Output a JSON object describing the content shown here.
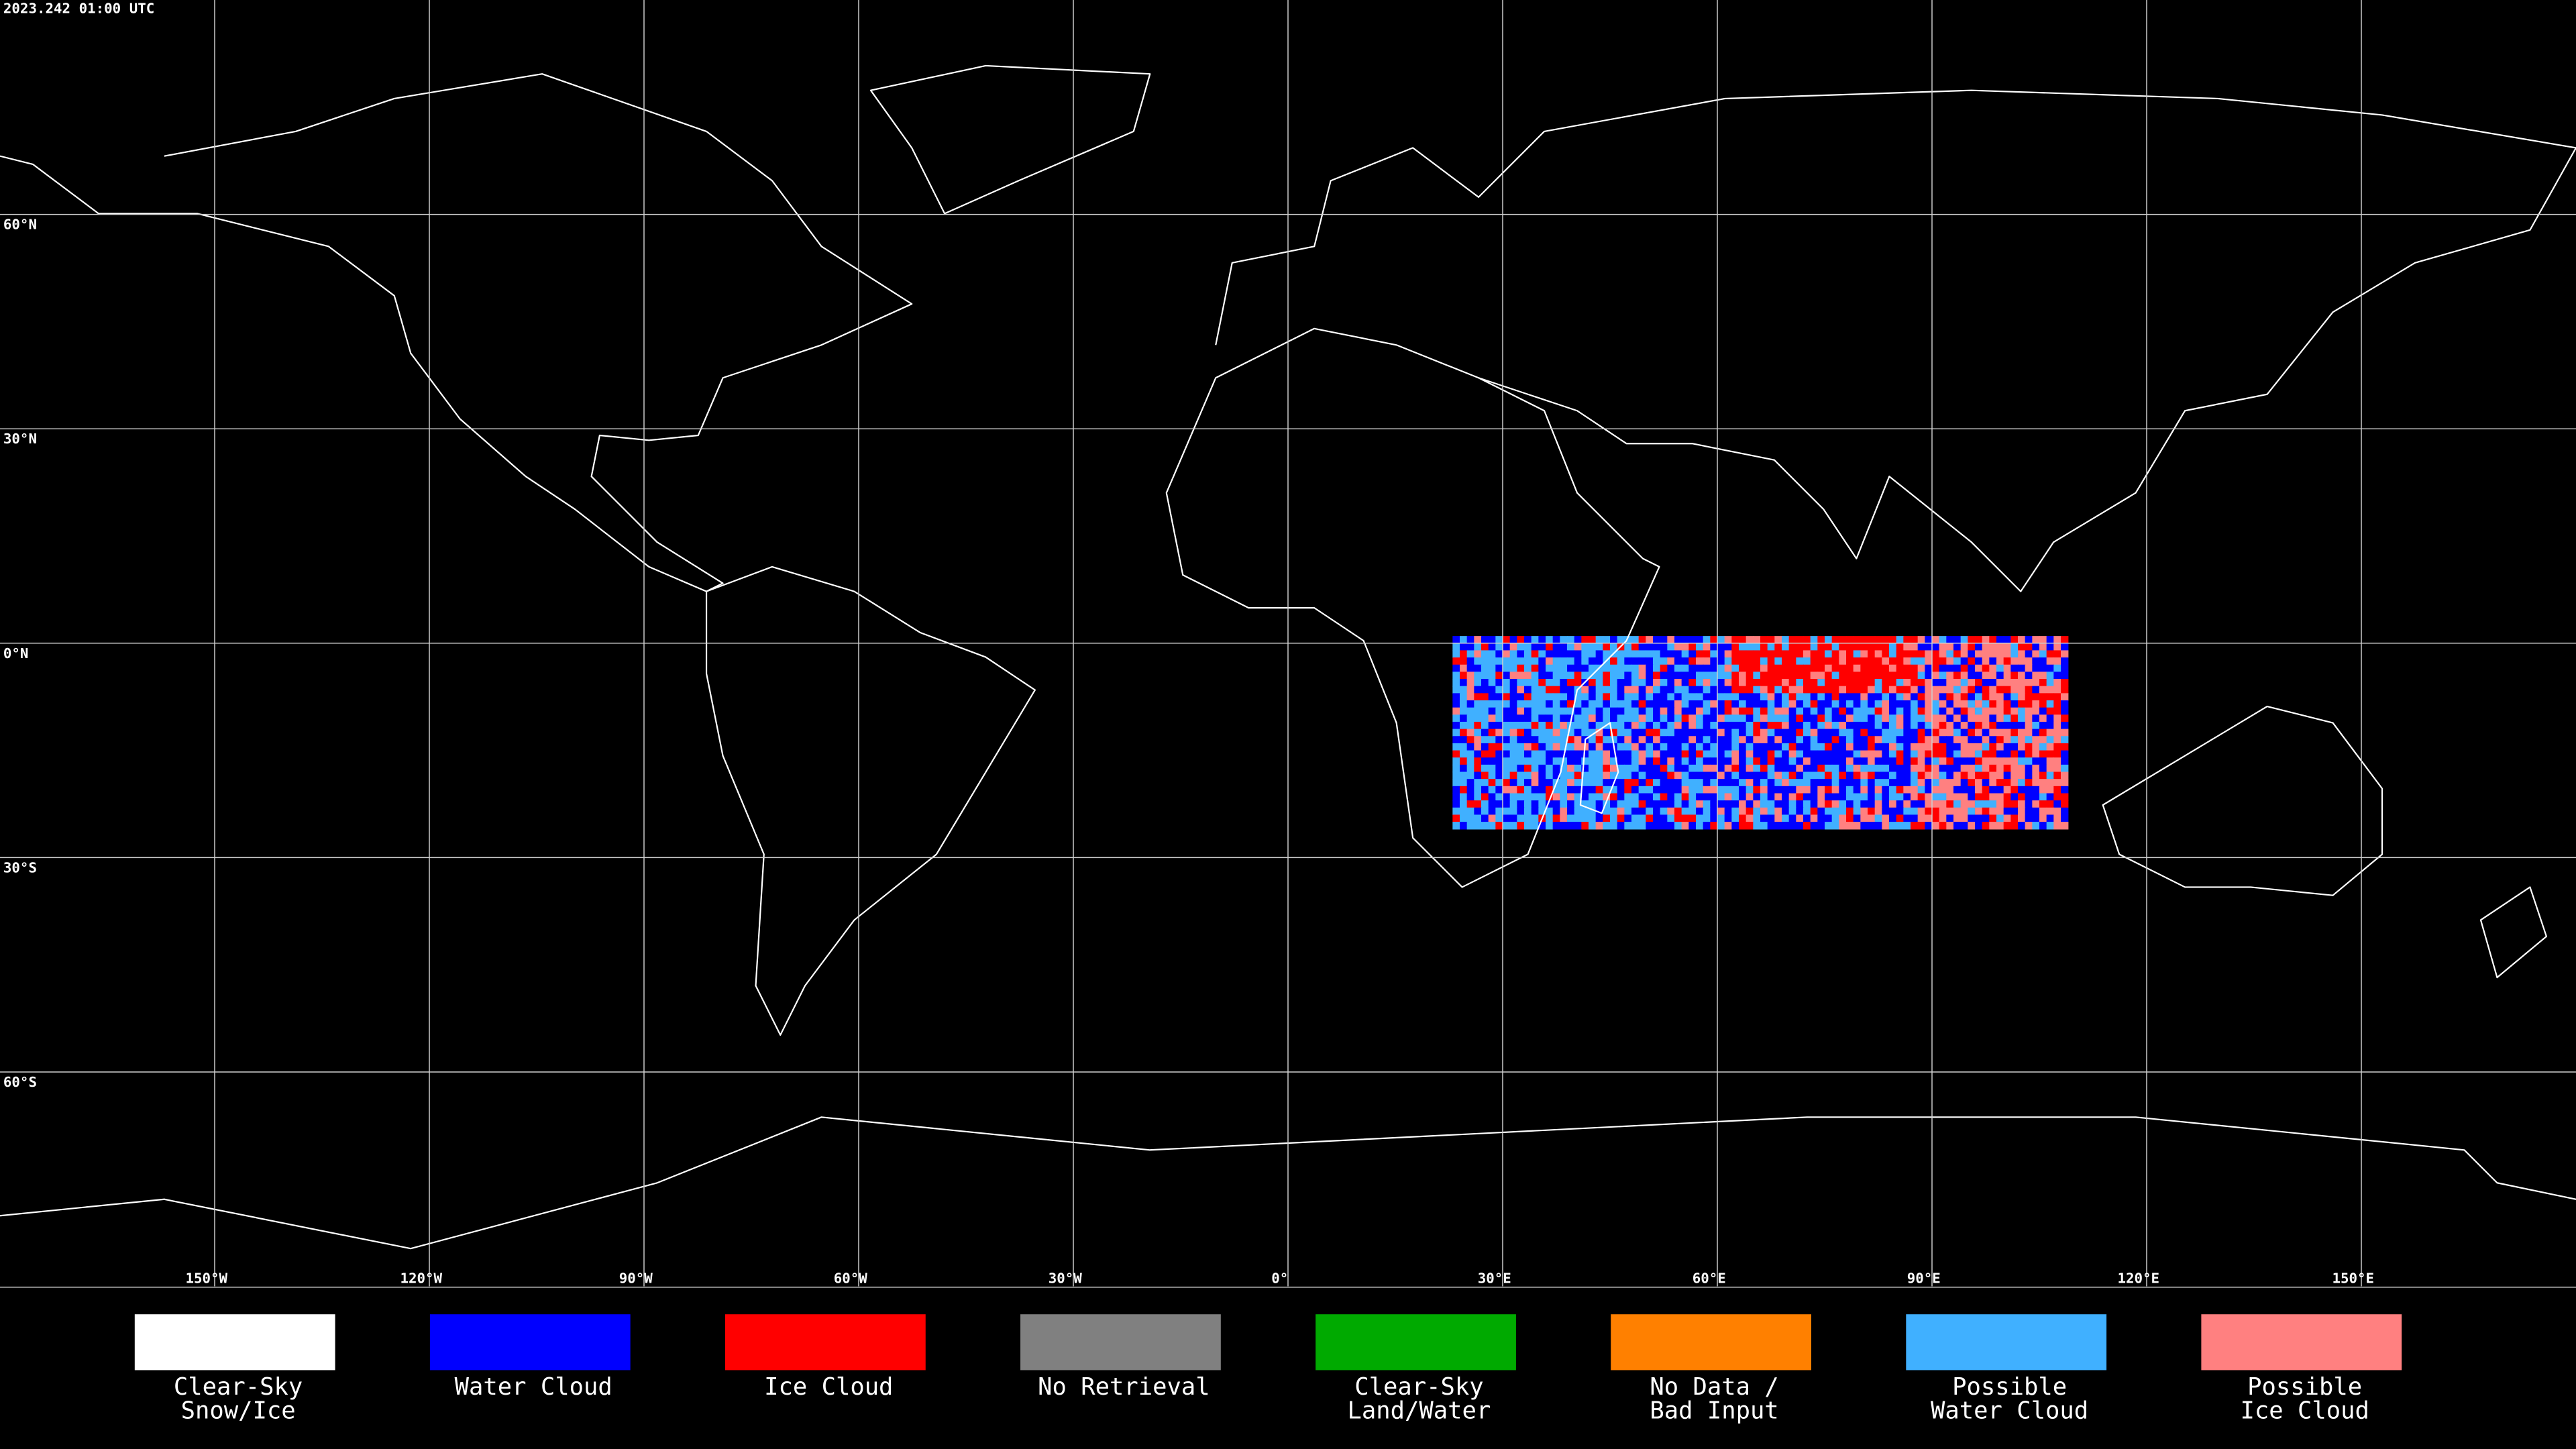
{
  "header": {
    "timestamp": "2023.242 01:00 UTC"
  },
  "map": {
    "lat_lines": [
      {
        "value": 60,
        "label": "60°N"
      },
      {
        "value": 30,
        "label": "30°N"
      },
      {
        "value": 0,
        "label": "0°N"
      },
      {
        "value": -30,
        "label": "30°S"
      },
      {
        "value": -60,
        "label": "60°S"
      }
    ],
    "lon_lines": [
      {
        "value": -150,
        "label": "150°W"
      },
      {
        "value": -120,
        "label": "120°W"
      },
      {
        "value": -90,
        "label": "90°W"
      },
      {
        "value": -60,
        "label": "60°W"
      },
      {
        "value": -30,
        "label": "30°W"
      },
      {
        "value": 0,
        "label": "0°"
      },
      {
        "value": 30,
        "label": "30°E"
      },
      {
        "value": 60,
        "label": "60°E"
      },
      {
        "value": 90,
        "label": "90°E"
      },
      {
        "value": 120,
        "label": "120°E"
      },
      {
        "value": 150,
        "label": "150°E"
      }
    ]
  },
  "legend": [
    {
      "lines": [
        "Clear-Sky",
        "Snow/Ice"
      ],
      "color": "#ffffff"
    },
    {
      "lines": [
        "Water Cloud"
      ],
      "color": "#0000ff"
    },
    {
      "lines": [
        "Ice Cloud"
      ],
      "color": "#ff0000"
    },
    {
      "lines": [
        "No Retrieval"
      ],
      "color": "#808080"
    },
    {
      "lines": [
        "Clear-Sky",
        "Land/Water"
      ],
      "color": "#00aa00"
    },
    {
      "lines": [
        "No Data /",
        "Bad Input"
      ],
      "color": "#ff8000"
    },
    {
      "lines": [
        "Possible",
        "Water Cloud"
      ],
      "color": "#40b0ff"
    },
    {
      "lines": [
        "Possible",
        "Ice Cloud"
      ],
      "color": "#ff8080"
    }
  ]
}
